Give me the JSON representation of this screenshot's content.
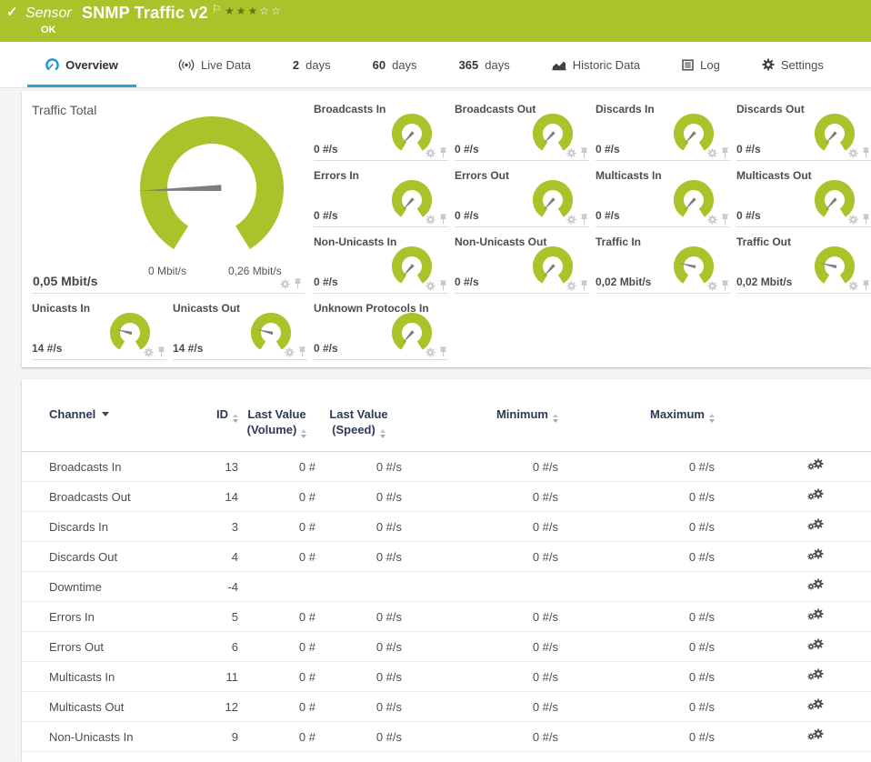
{
  "colors": {
    "green": "#a9c32a",
    "needle": "#7d7d7d",
    "tab_blue": "#2ba3da",
    "navy": "#2b3a55"
  },
  "header": {
    "kind": "Sensor",
    "title": "SNMP Traffic v2",
    "status": "OK",
    "stars_filled": 3,
    "stars_total": 5
  },
  "tabs": [
    {
      "label": "Overview",
      "icon": "gauge",
      "active": true
    },
    {
      "label": "Live Data",
      "icon": "broadcast"
    },
    {
      "num": "2",
      "label": "days"
    },
    {
      "num": "60",
      "label": "days"
    },
    {
      "num": "365",
      "label": "days"
    },
    {
      "label": "Historic Data",
      "icon": "historic"
    },
    {
      "label": "Log",
      "icon": "log"
    },
    {
      "label": "Settings",
      "icon": "gear"
    }
  ],
  "traffic_total": {
    "title": "Traffic Total",
    "value": "0,05 Mbit/s",
    "scale_min": "0 Mbit/s",
    "scale_max": "0,26 Mbit/s",
    "needle_deg": 268
  },
  "mini_gauges": [
    {
      "title": "Broadcasts In",
      "value": "0 #/s",
      "needle_deg": 222
    },
    {
      "title": "Broadcasts Out",
      "value": "0 #/s",
      "needle_deg": 222
    },
    {
      "title": "Discards In",
      "value": "0 #/s",
      "needle_deg": 222
    },
    {
      "title": "Discards Out",
      "value": "0 #/s",
      "needle_deg": 222
    },
    {
      "title": "Errors In",
      "value": "0 #/s",
      "needle_deg": 222
    },
    {
      "title": "Errors Out",
      "value": "0 #/s",
      "needle_deg": 222
    },
    {
      "title": "Multicasts In",
      "value": "0 #/s",
      "needle_deg": 222
    },
    {
      "title": "Multicasts Out",
      "value": "0 #/s",
      "needle_deg": 222
    },
    {
      "title": "Non-Unicasts In",
      "value": "0 #/s",
      "needle_deg": 222
    },
    {
      "title": "Non-Unicasts Out",
      "value": "0 #/s",
      "needle_deg": 222
    },
    {
      "title": "Traffic In",
      "value": "0,02 Mbit/s",
      "needle_deg": 283
    },
    {
      "title": "Traffic Out",
      "value": "0,02 Mbit/s",
      "needle_deg": 283
    },
    {
      "title": "Unicasts In",
      "value": "14 #/s",
      "needle_deg": 284
    },
    {
      "title": "Unicasts Out",
      "value": "14 #/s",
      "needle_deg": 284
    },
    {
      "title": "Unknown Protocols In",
      "value": "0 #/s",
      "needle_deg": 222
    }
  ],
  "table": {
    "headers": {
      "channel": "Channel",
      "id": "ID",
      "vol1": "Last Value",
      "vol2": "(Volume)",
      "speed1": "Last Value",
      "speed2": "(Speed)",
      "min": "Minimum",
      "max": "Maximum"
    },
    "rows": [
      {
        "channel": "Broadcasts In",
        "id": "13",
        "vol": "0 #",
        "speed": "0 #/s",
        "min": "0 #/s",
        "max": "0 #/s"
      },
      {
        "channel": "Broadcasts Out",
        "id": "14",
        "vol": "0 #",
        "speed": "0 #/s",
        "min": "0 #/s",
        "max": "0 #/s"
      },
      {
        "channel": "Discards In",
        "id": "3",
        "vol": "0 #",
        "speed": "0 #/s",
        "min": "0 #/s",
        "max": "0 #/s"
      },
      {
        "channel": "Discards Out",
        "id": "4",
        "vol": "0 #",
        "speed": "0 #/s",
        "min": "0 #/s",
        "max": "0 #/s"
      },
      {
        "channel": "Downtime",
        "id": "-4",
        "vol": "",
        "speed": "",
        "min": "",
        "max": ""
      },
      {
        "channel": "Errors In",
        "id": "5",
        "vol": "0 #",
        "speed": "0 #/s",
        "min": "0 #/s",
        "max": "0 #/s"
      },
      {
        "channel": "Errors Out",
        "id": "6",
        "vol": "0 #",
        "speed": "0 #/s",
        "min": "0 #/s",
        "max": "0 #/s"
      },
      {
        "channel": "Multicasts In",
        "id": "11",
        "vol": "0 #",
        "speed": "0 #/s",
        "min": "0 #/s",
        "max": "0 #/s"
      },
      {
        "channel": "Multicasts Out",
        "id": "12",
        "vol": "0 #",
        "speed": "0 #/s",
        "min": "0 #/s",
        "max": "0 #/s"
      },
      {
        "channel": "Non-Unicasts In",
        "id": "9",
        "vol": "0 #",
        "speed": "0 #/s",
        "min": "0 #/s",
        "max": "0 #/s"
      }
    ]
  }
}
